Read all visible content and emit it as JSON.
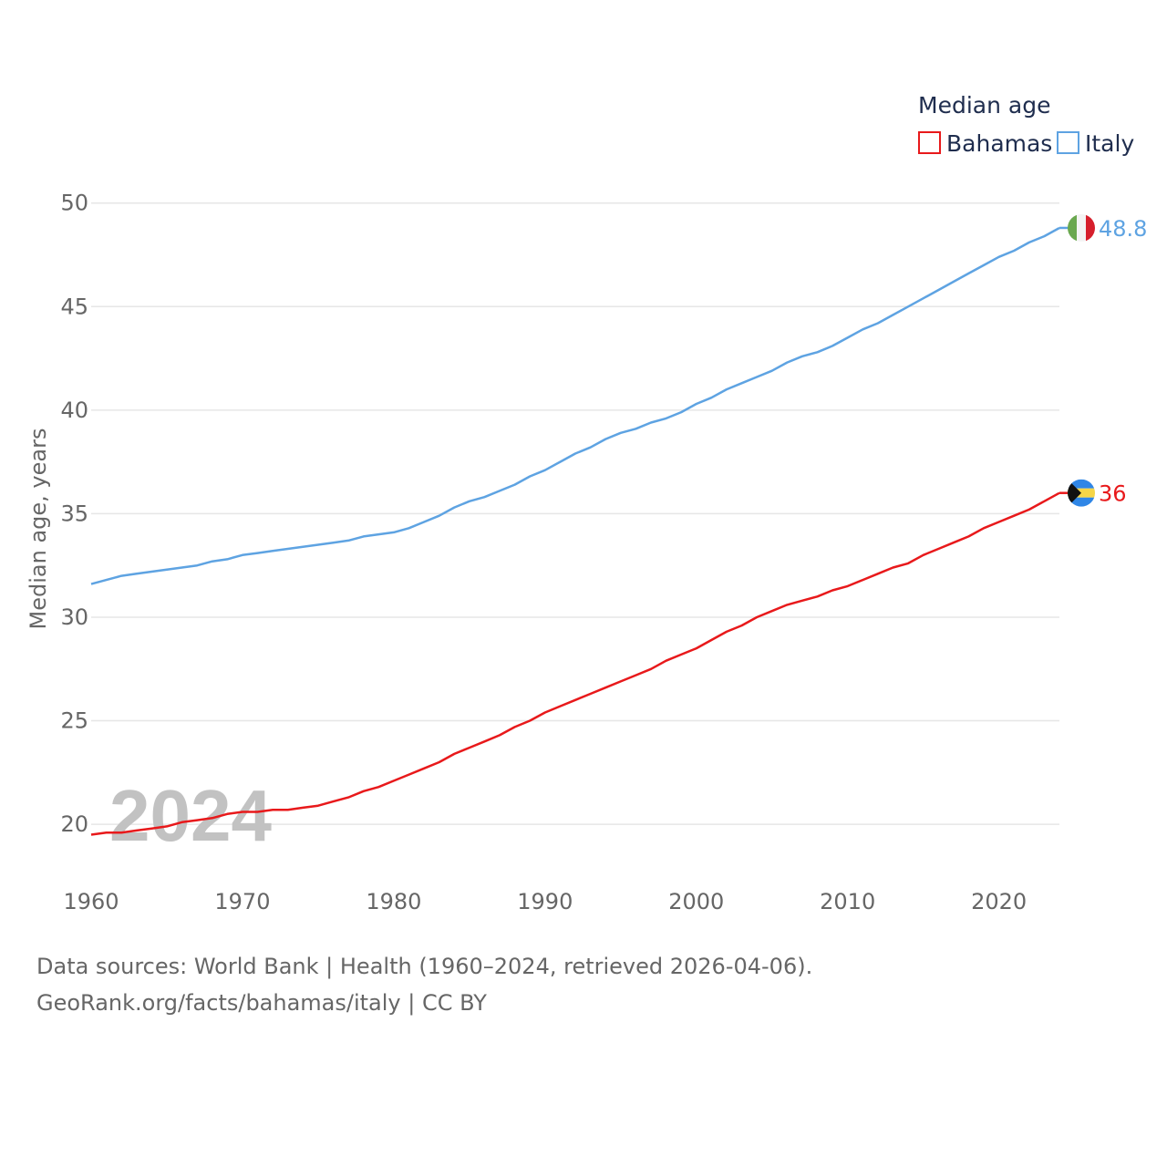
{
  "chart_data": {
    "type": "line",
    "title": "Median age",
    "ylabel": "Median age, years",
    "xlabel": "",
    "xlim": [
      1960,
      2024
    ],
    "ylim": [
      18.2,
      51
    ],
    "x_ticks": [
      1960,
      1970,
      1980,
      1990,
      2000,
      2010,
      2020
    ],
    "y_ticks": [
      20,
      25,
      30,
      35,
      40,
      45,
      50
    ],
    "grid": true,
    "legend_position": "top-right",
    "year_label": "2024",
    "x": [
      1960,
      1961,
      1962,
      1963,
      1964,
      1965,
      1966,
      1967,
      1968,
      1969,
      1970,
      1971,
      1972,
      1973,
      1974,
      1975,
      1976,
      1977,
      1978,
      1979,
      1980,
      1981,
      1982,
      1983,
      1984,
      1985,
      1986,
      1987,
      1988,
      1989,
      1990,
      1991,
      1992,
      1993,
      1994,
      1995,
      1996,
      1997,
      1998,
      1999,
      2000,
      2001,
      2002,
      2003,
      2004,
      2005,
      2006,
      2007,
      2008,
      2009,
      2010,
      2011,
      2012,
      2013,
      2014,
      2015,
      2016,
      2017,
      2018,
      2019,
      2020,
      2021,
      2022,
      2023,
      2024
    ],
    "series": [
      {
        "name": "Bahamas",
        "color": "#e8191b",
        "end_label": "36",
        "flag": "bahamas-flag",
        "values": [
          19.5,
          19.6,
          19.6,
          19.7,
          19.8,
          19.9,
          20.1,
          20.2,
          20.3,
          20.5,
          20.6,
          20.6,
          20.7,
          20.7,
          20.8,
          20.9,
          21.1,
          21.3,
          21.6,
          21.8,
          22.1,
          22.4,
          22.7,
          23.0,
          23.4,
          23.7,
          24.0,
          24.3,
          24.7,
          25.0,
          25.4,
          25.7,
          26.0,
          26.3,
          26.6,
          26.9,
          27.2,
          27.5,
          27.9,
          28.2,
          28.5,
          28.9,
          29.3,
          29.6,
          30.0,
          30.3,
          30.6,
          30.8,
          31.0,
          31.3,
          31.5,
          31.8,
          32.1,
          32.4,
          32.6,
          33.0,
          33.3,
          33.6,
          33.9,
          34.3,
          34.6,
          34.9,
          35.2,
          35.6,
          36.0
        ]
      },
      {
        "name": "Italy",
        "color": "#5ea3e2",
        "end_label": "48.8",
        "flag": "italy-flag",
        "values": [
          31.6,
          31.8,
          32.0,
          32.1,
          32.2,
          32.3,
          32.4,
          32.5,
          32.7,
          32.8,
          33.0,
          33.1,
          33.2,
          33.3,
          33.4,
          33.5,
          33.6,
          33.7,
          33.9,
          34.0,
          34.1,
          34.3,
          34.6,
          34.9,
          35.3,
          35.6,
          35.8,
          36.1,
          36.4,
          36.8,
          37.1,
          37.5,
          37.9,
          38.2,
          38.6,
          38.9,
          39.1,
          39.4,
          39.6,
          39.9,
          40.3,
          40.6,
          41.0,
          41.3,
          41.6,
          41.9,
          42.3,
          42.6,
          42.8,
          43.1,
          43.5,
          43.9,
          44.2,
          44.6,
          45.0,
          45.4,
          45.8,
          46.2,
          46.6,
          47.0,
          47.4,
          47.7,
          48.1,
          48.4,
          48.8
        ]
      }
    ]
  },
  "footer": {
    "sources_line": "Data sources: World Bank | Health (1960–2024, retrieved 2026-04-06).",
    "url_line": "GeoRank.org/facts/bahamas/italy | CC BY"
  }
}
